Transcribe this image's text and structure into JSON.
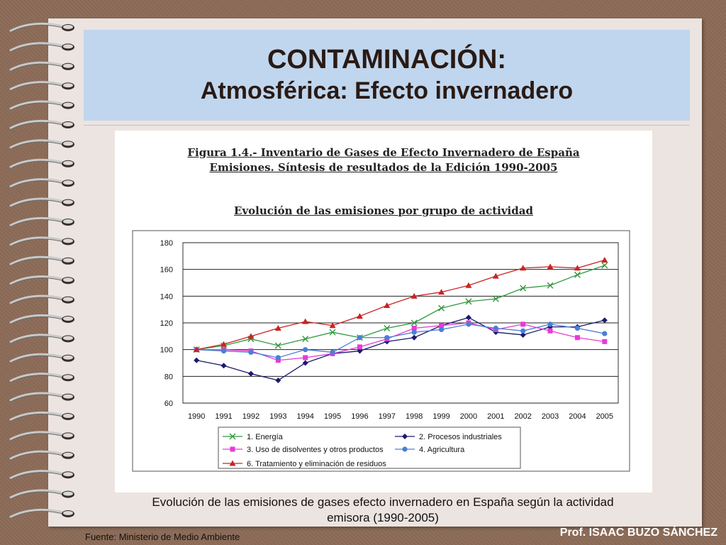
{
  "slide": {
    "title_line1": "CONTAMINACIÓN:",
    "title_line2": "Atmosférica: Efecto invernadero",
    "caption_line1": "Evolución de las emisiones de gases efecto invernadero en España según la actividad",
    "caption_line2": "emisora (1990-2005)",
    "source": "Fuente: Ministerio de Medio Ambiente",
    "author": "Prof. ISAAC BUZO SÁNCHEZ"
  },
  "figure": {
    "heading_line1": "Figura 1.4.- Inventario de Gases de Efecto Invernadero de España",
    "heading_line2": "Emisiones. Síntesis de resultados de la Edición 1990-2005",
    "subheading": "Evolución de las emisiones por grupo de actividad"
  },
  "chart_data": {
    "type": "line",
    "title": "Evolución de las emisiones por grupo de actividad",
    "xlabel": "",
    "ylabel": "",
    "ylim": [
      60,
      180
    ],
    "yticks": [
      60,
      80,
      100,
      120,
      140,
      160,
      180
    ],
    "grid": true,
    "legend_placement": "bottom",
    "x": [
      "1990",
      "1991",
      "1992",
      "1993",
      "1994",
      "1995",
      "1996",
      "1997",
      "1998",
      "1999",
      "2000",
      "2001",
      "2002",
      "2003",
      "2004",
      "2005"
    ],
    "series": [
      {
        "name": "1. Energía",
        "color": "#2e9a3e",
        "marker": "x",
        "values": [
          100,
          103,
          108,
          103,
          108,
          113,
          109,
          116,
          120,
          131,
          136,
          138,
          146,
          148,
          156,
          163
        ]
      },
      {
        "name": "2. Procesos industriales",
        "color": "#1a1a6e",
        "marker": "diamond",
        "values": [
          92,
          88,
          82,
          77,
          90,
          97,
          99,
          106,
          109,
          118,
          124,
          113,
          111,
          117,
          117,
          122
        ]
      },
      {
        "name": "3. Uso de disolventes y otros productos",
        "color": "#e83ad6",
        "marker": "square",
        "values": [
          100,
          100,
          99,
          92,
          94,
          97,
          102,
          108,
          116,
          118,
          120,
          115,
          119,
          114,
          109,
          106
        ]
      },
      {
        "name": "4. Agricultura",
        "color": "#4a7fd4",
        "marker": "circle",
        "values": [
          100,
          99,
          98,
          94,
          100,
          98,
          109,
          109,
          113,
          115,
          119,
          116,
          114,
          119,
          116,
          112
        ]
      },
      {
        "name": "6. Tratamiento y eliminación de residuos",
        "color": "#c82424",
        "marker": "triangle",
        "values": [
          100,
          104,
          110,
          116,
          121,
          118,
          125,
          133,
          140,
          143,
          148,
          155,
          161,
          162,
          161,
          167
        ]
      }
    ]
  }
}
